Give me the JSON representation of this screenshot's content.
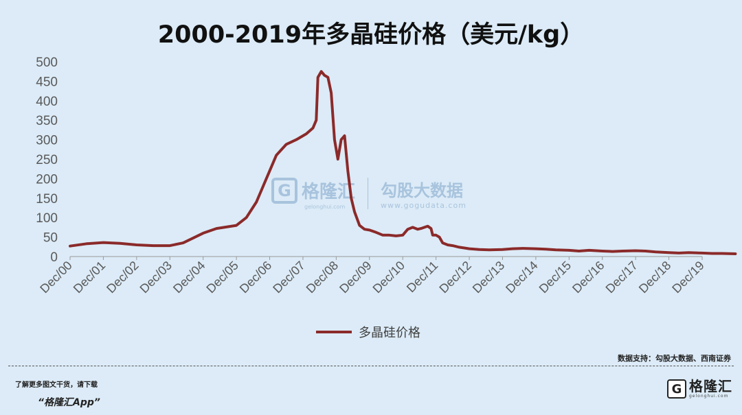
{
  "chart_data": {
    "type": "line",
    "title": "2000-2019年多晶硅价格（美元/kg）",
    "xlabel": "",
    "ylabel": "",
    "ylim": [
      0,
      500
    ],
    "yticks": [
      0,
      50,
      100,
      150,
      200,
      250,
      300,
      350,
      400,
      450,
      500
    ],
    "xticks": [
      "Dec/00",
      "Dec/01",
      "Dec/02",
      "Dec/03",
      "Dec/04",
      "Dec/05",
      "Dec/06",
      "Dec/07",
      "Dec/08",
      "Dec/09",
      "Dec/10",
      "Dec/11",
      "Dec/12",
      "Dec/13",
      "Dec/14",
      "Dec/15",
      "Dec/16",
      "Dec/17",
      "Dec/18",
      "Dec/19"
    ],
    "grid": false,
    "legend_position": "bottom",
    "series": [
      {
        "name": "多晶硅价格",
        "color": "#8b2a2a",
        "points": [
          [
            0,
            27
          ],
          [
            0.5,
            33
          ],
          [
            1,
            36
          ],
          [
            1.5,
            34
          ],
          [
            2,
            30
          ],
          [
            2.5,
            28
          ],
          [
            3,
            28
          ],
          [
            3.4,
            35
          ],
          [
            4,
            60
          ],
          [
            4.4,
            72
          ],
          [
            5,
            80
          ],
          [
            5.3,
            100
          ],
          [
            5.6,
            140
          ],
          [
            5.9,
            200
          ],
          [
            6.2,
            260
          ],
          [
            6.5,
            288
          ],
          [
            6.8,
            300
          ],
          [
            7.1,
            315
          ],
          [
            7.3,
            330
          ],
          [
            7.4,
            350
          ],
          [
            7.45,
            460
          ],
          [
            7.55,
            475
          ],
          [
            7.65,
            465
          ],
          [
            7.75,
            460
          ],
          [
            7.85,
            420
          ],
          [
            7.95,
            300
          ],
          [
            8.05,
            250
          ],
          [
            8.15,
            300
          ],
          [
            8.25,
            310
          ],
          [
            8.35,
            220
          ],
          [
            8.45,
            150
          ],
          [
            8.55,
            115
          ],
          [
            8.7,
            80
          ],
          [
            8.85,
            70
          ],
          [
            9,
            68
          ],
          [
            9.2,
            62
          ],
          [
            9.4,
            55
          ],
          [
            9.6,
            55
          ],
          [
            9.8,
            53
          ],
          [
            10,
            55
          ],
          [
            10.15,
            70
          ],
          [
            10.3,
            75
          ],
          [
            10.45,
            70
          ],
          [
            10.55,
            72
          ],
          [
            10.65,
            75
          ],
          [
            10.75,
            78
          ],
          [
            10.85,
            72
          ],
          [
            10.9,
            55
          ],
          [
            11,
            55
          ],
          [
            11.1,
            50
          ],
          [
            11.2,
            35
          ],
          [
            11.35,
            30
          ],
          [
            11.5,
            28
          ],
          [
            11.7,
            24
          ],
          [
            12,
            20
          ],
          [
            12.3,
            18
          ],
          [
            12.6,
            17
          ],
          [
            13,
            18
          ],
          [
            13.3,
            20
          ],
          [
            13.6,
            21
          ],
          [
            14,
            20
          ],
          [
            14.3,
            19
          ],
          [
            14.6,
            17
          ],
          [
            15,
            16
          ],
          [
            15.3,
            14
          ],
          [
            15.6,
            16
          ],
          [
            16,
            14
          ],
          [
            16.3,
            13
          ],
          [
            16.6,
            14
          ],
          [
            17,
            15
          ],
          [
            17.3,
            14
          ],
          [
            17.6,
            12
          ],
          [
            18,
            10
          ],
          [
            18.3,
            9
          ],
          [
            18.6,
            10
          ],
          [
            19,
            9
          ],
          [
            19.3,
            8
          ],
          [
            19.6,
            8
          ],
          [
            20,
            7
          ]
        ]
      }
    ]
  },
  "watermark": {
    "logo_letter": "G",
    "name": "格隆汇",
    "sub": "gelonghui.com",
    "name2": "勾股大数据",
    "sub2": "www.gogudata.com"
  },
  "source_note": "数据支持：勾股大数据、西南证券",
  "footer": {
    "line1": "了解更多图文干货，请下载",
    "line2": "“格隆汇App”"
  },
  "brand": {
    "logo_letter": "G",
    "name": "格隆汇",
    "sub": "gelonghui.com"
  }
}
